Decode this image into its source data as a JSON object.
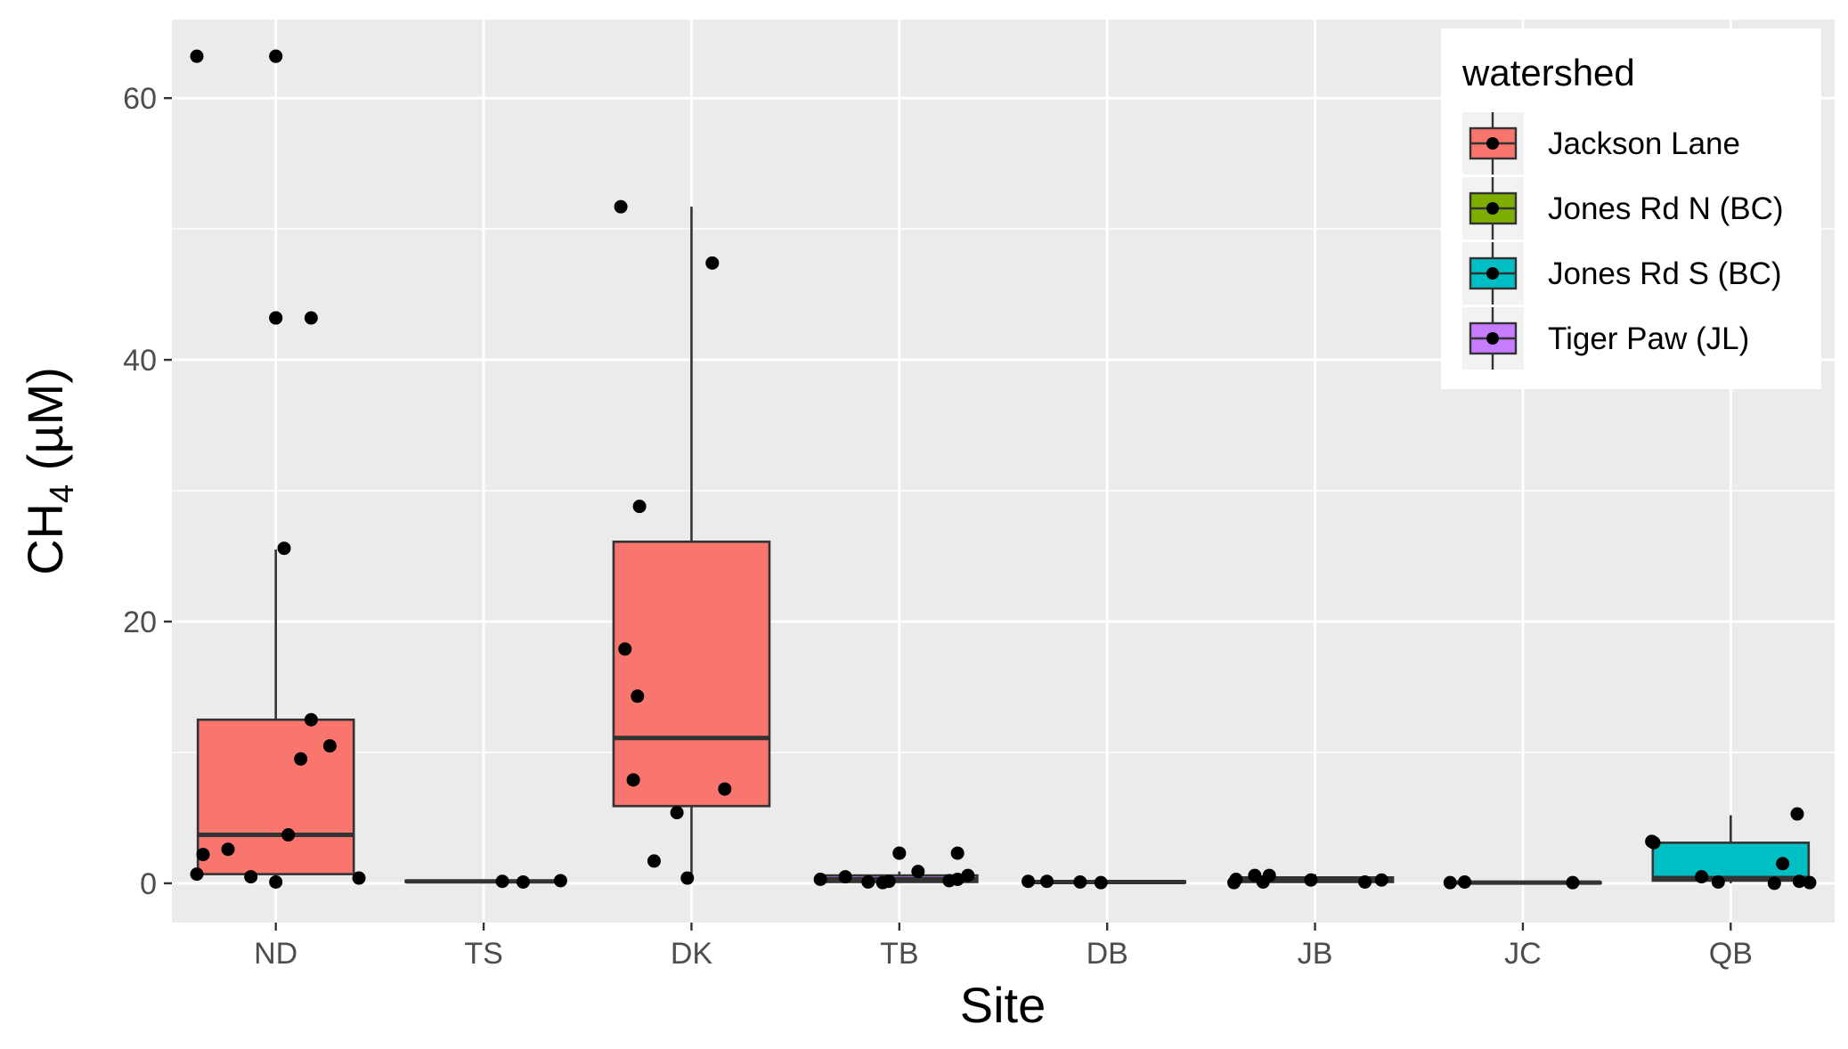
{
  "chart_data": {
    "type": "box",
    "xlabel": "Site",
    "ylabel": {
      "main": "CH",
      "sub": "4",
      "unit": " (µM)"
    },
    "categories": [
      "ND",
      "TS",
      "DK",
      "TB",
      "DB",
      "JB",
      "JC",
      "QB"
    ],
    "ylim": [
      -3,
      66
    ],
    "yticks": [
      0,
      20,
      40,
      60
    ],
    "grid": true,
    "legend": {
      "title": "watershed",
      "position": "top-right",
      "entries": [
        {
          "label": "Jackson Lane",
          "color": "#F8766D"
        },
        {
          "label": "Jones Rd N (BC)",
          "color": "#7CAE00"
        },
        {
          "label": "Jones Rd S (BC)",
          "color": "#00BFC4"
        },
        {
          "label": "Tiger Paw (JL)",
          "color": "#C77CFF"
        }
      ]
    },
    "boxes": [
      {
        "site": "ND",
        "watershed": "Jackson Lane",
        "color": "#F8766D",
        "q1": 0.7,
        "median": 3.7,
        "q3": 12.5,
        "whisker_low": 0.1,
        "whisker_high": 25.5,
        "outliers": [
          43.2,
          63.2
        ]
      },
      {
        "site": "TS",
        "watershed": "Tiger Paw (JL)",
        "color": "#C77CFF",
        "q1": 0.1,
        "median": 0.15,
        "q3": 0.2,
        "whisker_low": 0.1,
        "whisker_high": 0.2,
        "outliers": []
      },
      {
        "site": "DK",
        "watershed": "Jackson Lane",
        "color": "#F8766D",
        "q1": 5.9,
        "median": 11.1,
        "q3": 26.1,
        "whisker_low": 0.4,
        "whisker_high": 51.7,
        "outliers": []
      },
      {
        "site": "TB",
        "watershed": "Tiger Paw (JL)",
        "color": "#C77CFF",
        "q1": 0.1,
        "median": 0.3,
        "q3": 0.6,
        "whisker_low": 0.05,
        "whisker_high": 0.9,
        "outliers": [
          2.3
        ]
      },
      {
        "site": "DB",
        "watershed": "Tiger Paw (JL)",
        "color": "#C77CFF",
        "q1": 0.05,
        "median": 0.1,
        "q3": 0.15,
        "whisker_low": 0.05,
        "whisker_high": 0.2,
        "outliers": []
      },
      {
        "site": "JB",
        "watershed": "Jones Rd N (BC)",
        "color": "#7CAE00",
        "q1": 0.1,
        "median": 0.25,
        "q3": 0.45,
        "whisker_low": 0.05,
        "whisker_high": 0.7,
        "outliers": []
      },
      {
        "site": "JC",
        "watershed": "Jones Rd N (BC)",
        "color": "#7CAE00",
        "q1": 0.02,
        "median": 0.05,
        "q3": 0.08,
        "whisker_low": 0.0,
        "whisker_high": 0.1,
        "outliers": []
      },
      {
        "site": "QB",
        "watershed": "Jones Rd S (BC)",
        "color": "#00BFC4",
        "q1": 0.2,
        "median": 0.4,
        "q3": 3.1,
        "whisker_low": 0.0,
        "whisker_high": 5.2,
        "outliers": []
      }
    ],
    "points": [
      {
        "site": "ND",
        "jitter": -0.38,
        "y": 63.2
      },
      {
        "site": "ND",
        "jitter": 0.0,
        "y": 63.2
      },
      {
        "site": "ND",
        "jitter": 0.0,
        "y": 43.2
      },
      {
        "site": "ND",
        "jitter": 0.17,
        "y": 43.2
      },
      {
        "site": "ND",
        "jitter": 0.04,
        "y": 25.6
      },
      {
        "site": "ND",
        "jitter": 0.17,
        "y": 12.5
      },
      {
        "site": "ND",
        "jitter": 0.26,
        "y": 10.5
      },
      {
        "site": "ND",
        "jitter": 0.12,
        "y": 9.5
      },
      {
        "site": "ND",
        "jitter": 0.06,
        "y": 3.7
      },
      {
        "site": "ND",
        "jitter": -0.23,
        "y": 2.6
      },
      {
        "site": "ND",
        "jitter": -0.35,
        "y": 2.2
      },
      {
        "site": "ND",
        "jitter": -0.12,
        "y": 0.5
      },
      {
        "site": "ND",
        "jitter": -0.38,
        "y": 0.7
      },
      {
        "site": "ND",
        "jitter": 0.0,
        "y": 0.1
      },
      {
        "site": "ND",
        "jitter": 0.4,
        "y": 0.4
      },
      {
        "site": "TS",
        "jitter": 0.09,
        "y": 0.15
      },
      {
        "site": "TS",
        "jitter": 0.19,
        "y": 0.1
      },
      {
        "site": "TS",
        "jitter": 0.37,
        "y": 0.2
      },
      {
        "site": "DK",
        "jitter": -0.34,
        "y": 51.7
      },
      {
        "site": "DK",
        "jitter": 0.1,
        "y": 47.4
      },
      {
        "site": "DK",
        "jitter": -0.25,
        "y": 28.8
      },
      {
        "site": "DK",
        "jitter": -0.32,
        "y": 17.9
      },
      {
        "site": "DK",
        "jitter": -0.26,
        "y": 14.3
      },
      {
        "site": "DK",
        "jitter": -0.28,
        "y": 7.9
      },
      {
        "site": "DK",
        "jitter": 0.16,
        "y": 7.2
      },
      {
        "site": "DK",
        "jitter": -0.07,
        "y": 5.4
      },
      {
        "site": "DK",
        "jitter": -0.18,
        "y": 1.7
      },
      {
        "site": "DK",
        "jitter": -0.02,
        "y": 0.4
      },
      {
        "site": "TB",
        "jitter": -0.38,
        "y": 0.3
      },
      {
        "site": "TB",
        "jitter": -0.26,
        "y": 0.5
      },
      {
        "site": "TB",
        "jitter": -0.15,
        "y": 0.1
      },
      {
        "site": "TB",
        "jitter": -0.08,
        "y": 0.05
      },
      {
        "site": "TB",
        "jitter": -0.05,
        "y": 0.15
      },
      {
        "site": "TB",
        "jitter": 0.0,
        "y": 2.3
      },
      {
        "site": "TB",
        "jitter": 0.09,
        "y": 0.9
      },
      {
        "site": "TB",
        "jitter": 0.24,
        "y": 0.2
      },
      {
        "site": "TB",
        "jitter": 0.28,
        "y": 0.3
      },
      {
        "site": "TB",
        "jitter": 0.28,
        "y": 2.3
      },
      {
        "site": "TB",
        "jitter": 0.33,
        "y": 0.6
      },
      {
        "site": "DB",
        "jitter": -0.38,
        "y": 0.15
      },
      {
        "site": "DB",
        "jitter": -0.29,
        "y": 0.15
      },
      {
        "site": "DB",
        "jitter": -0.13,
        "y": 0.1
      },
      {
        "site": "DB",
        "jitter": -0.03,
        "y": 0.05
      },
      {
        "site": "JB",
        "jitter": -0.39,
        "y": 0.05
      },
      {
        "site": "JB",
        "jitter": -0.38,
        "y": 0.3
      },
      {
        "site": "JB",
        "jitter": -0.29,
        "y": 0.6
      },
      {
        "site": "JB",
        "jitter": -0.25,
        "y": 0.1
      },
      {
        "site": "JB",
        "jitter": -0.22,
        "y": 0.6
      },
      {
        "site": "JB",
        "jitter": -0.02,
        "y": 0.25
      },
      {
        "site": "JB",
        "jitter": 0.24,
        "y": 0.1
      },
      {
        "site": "JB",
        "jitter": 0.32,
        "y": 0.25
      },
      {
        "site": "JC",
        "jitter": -0.35,
        "y": 0.05
      },
      {
        "site": "JC",
        "jitter": -0.28,
        "y": 0.1
      },
      {
        "site": "JC",
        "jitter": 0.24,
        "y": 0.05
      },
      {
        "site": "QB",
        "jitter": -0.38,
        "y": 3.2
      },
      {
        "site": "QB",
        "jitter": -0.37,
        "y": 3.1
      },
      {
        "site": "QB",
        "jitter": -0.14,
        "y": 0.5
      },
      {
        "site": "QB",
        "jitter": -0.06,
        "y": 0.1
      },
      {
        "site": "QB",
        "jitter": 0.21,
        "y": 0.0
      },
      {
        "site": "QB",
        "jitter": 0.25,
        "y": 1.5
      },
      {
        "site": "QB",
        "jitter": 0.32,
        "y": 5.3
      },
      {
        "site": "QB",
        "jitter": 0.33,
        "y": 0.15
      },
      {
        "site": "QB",
        "jitter": 0.38,
        "y": 0.05
      }
    ]
  }
}
